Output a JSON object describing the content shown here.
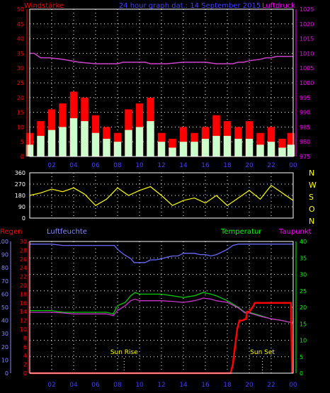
{
  "header": {
    "left": "Windstärke",
    "center": "24 hour graph dat.: 14 September 2015",
    "right": "Luftdruck"
  },
  "wind_panel": {
    "left_ticks": [
      "0",
      "5",
      "10",
      "15",
      "20",
      "25",
      "30",
      "35",
      "40",
      "45",
      "50"
    ],
    "right_ticks": [
      "975",
      "980",
      "985",
      "990",
      "995",
      "1000",
      "1005",
      "1010",
      "1015",
      "1020",
      "1025"
    ]
  },
  "dir_panel": {
    "left_ticks": [
      "0",
      "90",
      "180",
      "270",
      "360"
    ],
    "right_labels": [
      "N",
      "W",
      "S",
      "O",
      "N"
    ]
  },
  "bottom_panel": {
    "labels": {
      "regen": "Regen",
      "luftfeuchte": "Luftfeuchte",
      "temperatur": "Temperatur",
      "taupunkt": "Taupunkt"
    },
    "regen_ticks": [
      "0",
      "2",
      "4",
      "6",
      "8",
      "10",
      "12",
      "14",
      "16",
      "18",
      "20",
      "22",
      "24",
      "26",
      "28",
      "30"
    ],
    "humidity_ticks": [
      "0",
      "10",
      "20",
      "30",
      "40",
      "50",
      "60",
      "70",
      "80",
      "90",
      "100"
    ],
    "temp_ticks": [
      "0",
      "5",
      "10",
      "15",
      "20",
      "25",
      "30",
      "35",
      "40"
    ],
    "sun_rise": "Sun Rise",
    "sun_set": "Sun Set"
  },
  "x_ticks": [
    "02",
    "04",
    "06",
    "08",
    "10",
    "12",
    "14",
    "16",
    "18",
    "20",
    "22",
    "00"
  ],
  "colors": {
    "gust": "#ff0000",
    "wind": "#ccffcc",
    "pressure": "#cc44cc",
    "direction": "#ffff00",
    "humidity": "#6a6aff",
    "temperature": "#00cc00",
    "dewpoint": "#cc33cc",
    "rain": "#ff0000",
    "grid": "#ffffff",
    "text_blue": "#4040ff",
    "text_magenta": "#ff00ff",
    "text_green": "#00ff00",
    "text_red": "#ff0000",
    "text_lblue": "#8888ff",
    "text_yellow": "#ffff00"
  },
  "chart_data": [
    {
      "type": "line",
      "xlabel": "",
      "xlim": [
        0,
        24
      ],
      "series": [
        {
          "name": "Windstärke",
          "axis": "left",
          "ylim": [
            0,
            50
          ],
          "x": [
            0,
            1,
            2,
            3,
            4,
            5,
            6,
            7,
            8,
            9,
            10,
            11,
            12,
            13,
            14,
            15,
            16,
            17,
            18,
            19,
            20,
            21,
            22,
            23,
            24
          ],
          "peak": [
            8,
            12,
            16,
            18,
            22,
            20,
            14,
            10,
            8,
            16,
            18,
            20,
            8,
            6,
            10,
            8,
            10,
            14,
            12,
            10,
            12,
            8,
            10,
            6,
            8
          ],
          "mean": [
            4,
            7,
            9,
            10,
            13,
            12,
            8,
            6,
            5,
            9,
            10,
            12,
            5,
            3,
            5,
            5,
            6,
            7,
            7,
            6,
            6,
            4,
            5,
            3,
            4
          ]
        },
        {
          "name": "Luftdruck",
          "axis": "right",
          "ylim": [
            975,
            1025
          ],
          "x": [
            0,
            0.4,
            1,
            1.8,
            3,
            4.5,
            6,
            7.6,
            8,
            8.5,
            9.5,
            10.5,
            11,
            11.5,
            12.5,
            14,
            15,
            16,
            17,
            18.5,
            19,
            19.5,
            20,
            21,
            21.5,
            22,
            22.5,
            24
          ],
          "y": [
            1010,
            1010,
            1008.5,
            1008.5,
            1008,
            1007,
            1006.5,
            1006.5,
            1006.5,
            1007,
            1007,
            1007,
            1006.5,
            1006.5,
            1006.5,
            1007,
            1007,
            1007,
            1006.5,
            1006.5,
            1007,
            1007,
            1007.5,
            1008,
            1008.5,
            1008.5,
            1009,
            1009
          ]
        }
      ]
    },
    {
      "type": "line",
      "xlim": [
        0,
        24
      ],
      "ylim": [
        0,
        360
      ],
      "series": [
        {
          "name": "Windrichtung",
          "x": [
            0,
            1,
            2,
            3,
            4,
            5,
            6,
            7,
            8,
            9,
            10,
            11,
            12,
            13,
            14,
            15,
            16,
            17,
            18,
            19,
            20,
            21,
            22,
            23,
            24
          ],
          "y": [
            180,
            200,
            230,
            210,
            240,
            190,
            100,
            150,
            240,
            180,
            220,
            250,
            180,
            100,
            140,
            160,
            120,
            180,
            100,
            160,
            220,
            150,
            260,
            200,
            140
          ]
        }
      ]
    },
    {
      "type": "line",
      "xlim": [
        0,
        24
      ],
      "series": [
        {
          "name": "Luftfeuchte",
          "axis": "humidity",
          "ylim": [
            0,
            100
          ],
          "x": [
            0,
            1,
            2,
            3,
            4,
            5,
            6,
            7,
            7.7,
            8,
            8.6,
            9.2,
            9.5,
            10,
            10.5,
            11,
            11.5,
            12,
            12.5,
            13,
            13.5,
            14,
            15,
            15.5,
            16,
            16.5,
            17,
            17.5,
            18,
            18.5,
            19,
            20,
            21,
            22,
            23,
            24
          ],
          "y": [
            98,
            98,
            98,
            97,
            97,
            97,
            97,
            97,
            97,
            94,
            90,
            87,
            84,
            84,
            84,
            86,
            86,
            87,
            88,
            89,
            89,
            91,
            91,
            90,
            90,
            89,
            90,
            92,
            94,
            97,
            98,
            98,
            98,
            98,
            98,
            98
          ]
        },
        {
          "name": "Temperatur",
          "axis": "temp",
          "ylim": [
            0,
            40
          ],
          "x": [
            0,
            1,
            2,
            3,
            4,
            5,
            6,
            7,
            7.6,
            8,
            8.7,
            9.2,
            9.6,
            10,
            11,
            12,
            13,
            14,
            15,
            15.8,
            16.5,
            17,
            18,
            19,
            19.6,
            20,
            21,
            22,
            23,
            23.6,
            24
          ],
          "y": [
            19,
            19,
            19,
            18.5,
            18.5,
            18.5,
            18.5,
            18.5,
            18,
            20.5,
            21.5,
            23.5,
            24.5,
            24,
            24,
            24,
            23.5,
            23,
            23.5,
            24.5,
            24,
            23.5,
            22,
            20,
            18.5,
            18.5,
            17.5,
            16.5,
            16,
            15.5,
            15.5
          ]
        },
        {
          "name": "Taupunkt",
          "axis": "temp",
          "ylim": [
            0,
            40
          ],
          "x": [
            0,
            1,
            2,
            3,
            4,
            5,
            6,
            7,
            7.6,
            8,
            8.7,
            9.2,
            9.6,
            10,
            11,
            12,
            13,
            14,
            15,
            15.8,
            16.5,
            17,
            18,
            19,
            19.6,
            20,
            21,
            22,
            23,
            23.6,
            24
          ],
          "y": [
            18.5,
            18.5,
            18.5,
            18.3,
            18,
            18,
            18,
            18,
            17.5,
            19,
            20.5,
            22,
            22.5,
            22,
            22,
            22,
            21.8,
            21.5,
            22,
            22.8,
            22.5,
            22,
            21.5,
            19.8,
            18.3,
            18.3,
            17.3,
            16.5,
            16,
            15.5,
            15.3
          ]
        },
        {
          "name": "Regen",
          "axis": "regen",
          "ylim": [
            0,
            30
          ],
          "x": [
            0,
            18.3,
            18.5,
            18.9,
            19.1,
            19.4,
            19.6,
            19.7,
            19.8,
            20,
            20.4,
            20.5,
            23.8,
            23.9
          ],
          "y": [
            0,
            0,
            2,
            10,
            12,
            12,
            12.3,
            12.3,
            14,
            14,
            15.4,
            16,
            16,
            0
          ]
        }
      ]
    }
  ]
}
